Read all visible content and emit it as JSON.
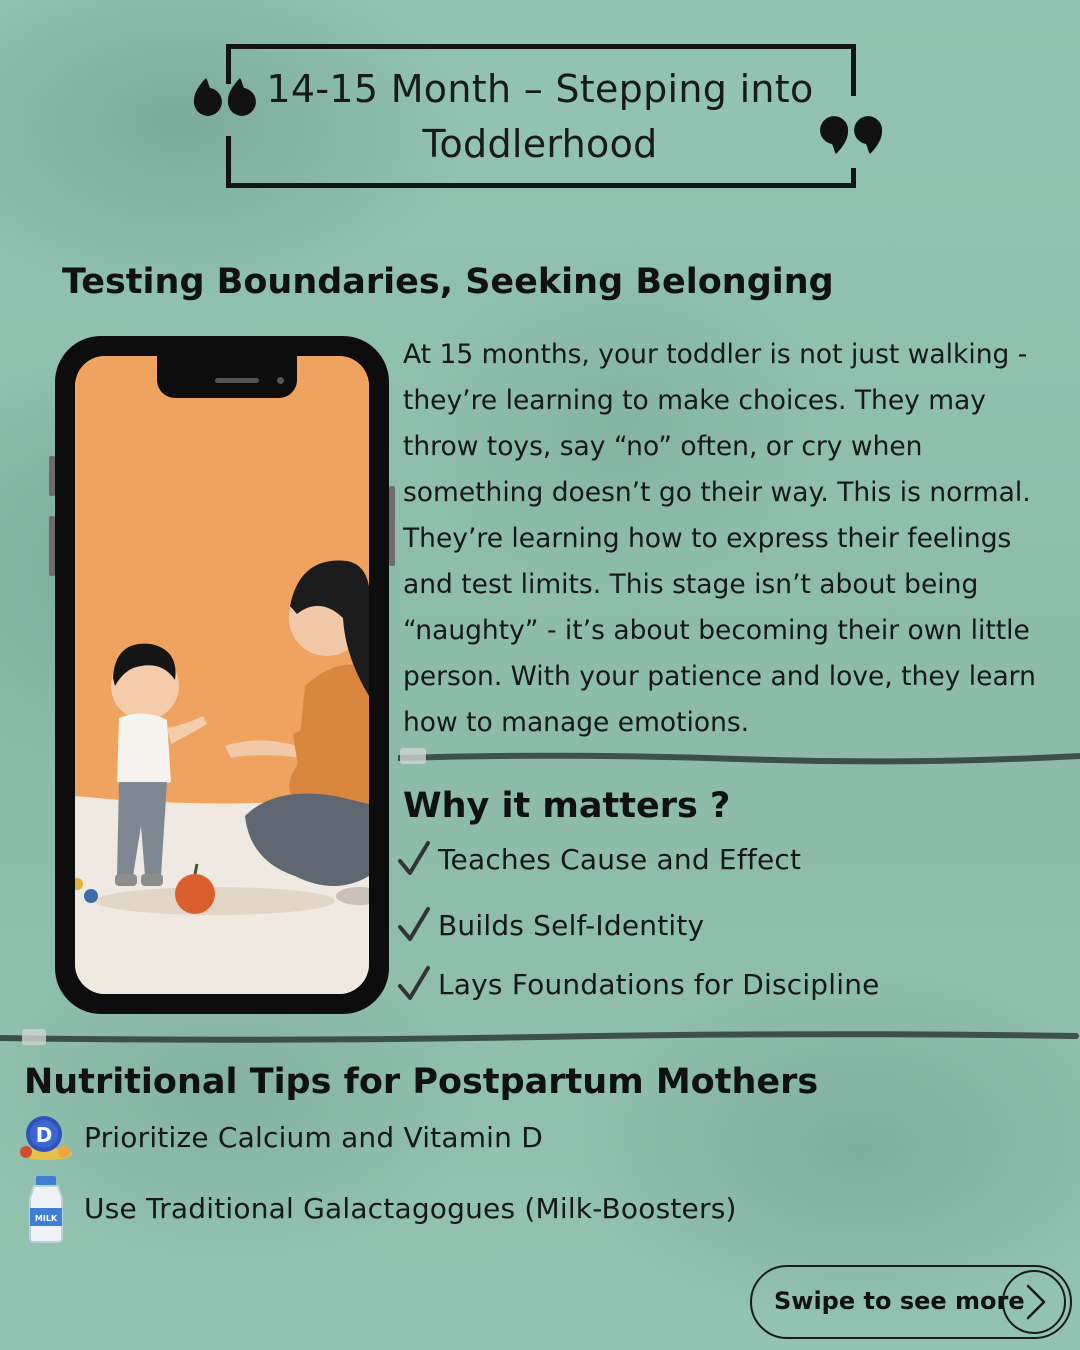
{
  "header": {
    "title_line1": "14-15 Month – Stepping into",
    "title_line2": "Toddlerhood"
  },
  "section1": {
    "heading": "Testing Boundaries, Seeking Belonging",
    "paragraph_lines": [
      "At 15 months, your toddler is not just walking -",
      "they’re learning to make choices. They may",
      "throw toys, say “no” often, or cry when",
      "something doesn’t go their way. This is normal.",
      "They’re learning how to express their feelings",
      "and test limits. This stage isn’t about being",
      "“naughty” - it’s about becoming their own little",
      "person. With your patience and love, they learn",
      "how to manage emotions."
    ]
  },
  "why": {
    "heading": "Why it matters ?",
    "items": [
      "Teaches Cause and Effect",
      "Builds Self-Identity",
      "Lays Foundations for Discipline"
    ]
  },
  "nutrition": {
    "heading": "Nutritional Tips for Postpartum Mothers",
    "tips": [
      {
        "icon": "vitamin-d-icon",
        "label": "Prioritize Calcium and Vitamin D"
      },
      {
        "icon": "milk-bottle-icon",
        "label": "Use Traditional Galactagogues (Milk-Boosters)"
      }
    ]
  },
  "icon_text": {
    "vitamin_badge": "D",
    "milk_label": "MILK"
  },
  "cta": {
    "label": "Swipe to see more"
  },
  "colors": {
    "background": "#8fbfae",
    "illustration_bg": "#f0a35e",
    "text": "#161616"
  }
}
